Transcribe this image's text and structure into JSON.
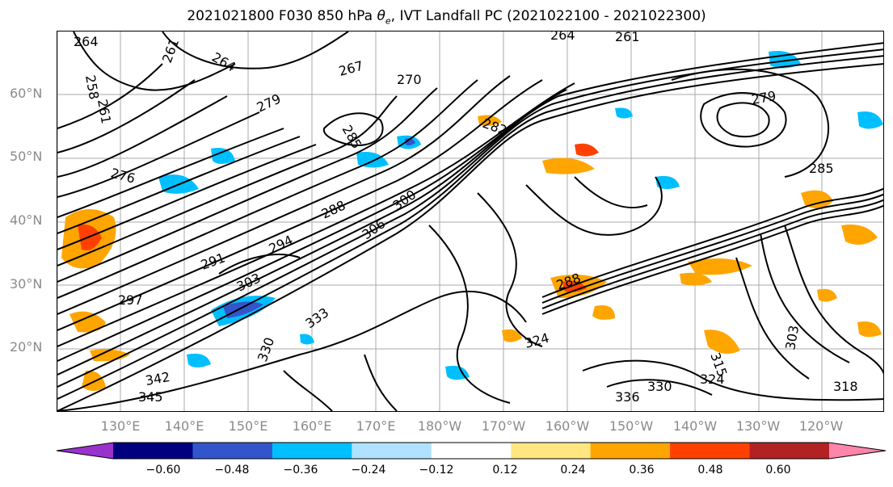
{
  "title": {
    "prefix": "2021021800 F030 850 hPa ",
    "symbol": "θ",
    "subscript": "e",
    "suffix": ", IVT Landfall PC (2021022100 - 2021022300)"
  },
  "lat_labels": [
    "60°N",
    "50°N",
    "40°N",
    "30°N",
    "20°N"
  ],
  "lon_labels": [
    "130°E",
    "140°E",
    "150°E",
    "160°E",
    "170°E",
    "180°W",
    "170°W",
    "160°W",
    "150°W",
    "140°W",
    "130°W",
    "120°W"
  ],
  "contour_labels": [
    "264",
    "261",
    "264",
    "261",
    "258",
    "261",
    "264",
    "267",
    "270",
    "279",
    "282",
    "285",
    "276",
    "288",
    "294",
    "291",
    "300",
    "306",
    "297",
    "303",
    "333",
    "324",
    "315",
    "303",
    "345",
    "342",
    "330",
    "324",
    "336",
    "330",
    "318",
    "279",
    "288",
    "285"
  ],
  "colorbar": {
    "colors": [
      "#9933cc",
      "#00007f",
      "#3355cc",
      "#00bfff",
      "#b0e2ff",
      "#ffffff",
      "#ffe680",
      "#ffa500",
      "#ff4000",
      "#b22222",
      "#ff85aa"
    ],
    "tick_labels": [
      "−0.60",
      "−0.48",
      "−0.36",
      "−0.24",
      "−0.12",
      "0.12",
      "0.24",
      "0.36",
      "0.48",
      "0.60"
    ]
  }
}
